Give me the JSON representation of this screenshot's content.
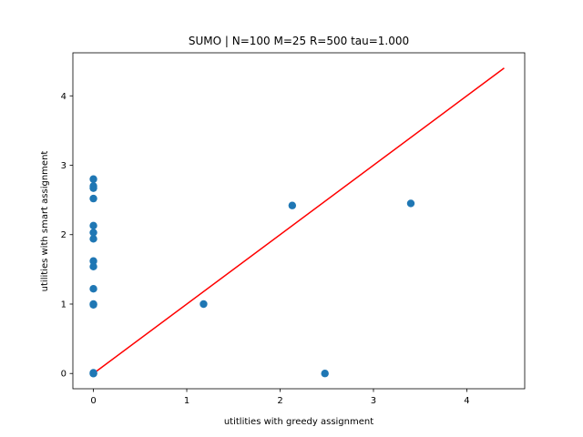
{
  "chart_data": {
    "type": "scatter",
    "title": "SUMO | N=100 M=25 R=500 tau=1.000",
    "xlabel": "utitlities with greedy assignment",
    "ylabel": "utilities with smart assignment",
    "xlim": [
      -0.22,
      4.62
    ],
    "ylim": [
      -0.22,
      4.62
    ],
    "xticks": [
      0,
      1,
      2,
      3,
      4
    ],
    "yticks": [
      0,
      1,
      2,
      3,
      4
    ],
    "xtick_labels": [
      "0",
      "1",
      "2",
      "3",
      "4"
    ],
    "ytick_labels": [
      "0",
      "1",
      "2",
      "3",
      "4"
    ],
    "grid": false,
    "point_color": "#1f77b4",
    "line_color": "#ff0000",
    "reference_line": {
      "x": [
        0,
        4.4
      ],
      "y": [
        0,
        4.4
      ]
    },
    "points": {
      "x": [
        0,
        0,
        0,
        0,
        0,
        0,
        0,
        0,
        0,
        0,
        0,
        0,
        0,
        0,
        0,
        1.18,
        2.13,
        3.4,
        2.48
      ],
      "y": [
        2.8,
        2.7,
        2.67,
        2.52,
        2.13,
        2.03,
        1.94,
        1.62,
        1.54,
        1.22,
        1.0,
        0.99,
        0.0,
        0.0,
        0.01,
        1.0,
        2.42,
        2.45,
        0.0
      ]
    }
  }
}
